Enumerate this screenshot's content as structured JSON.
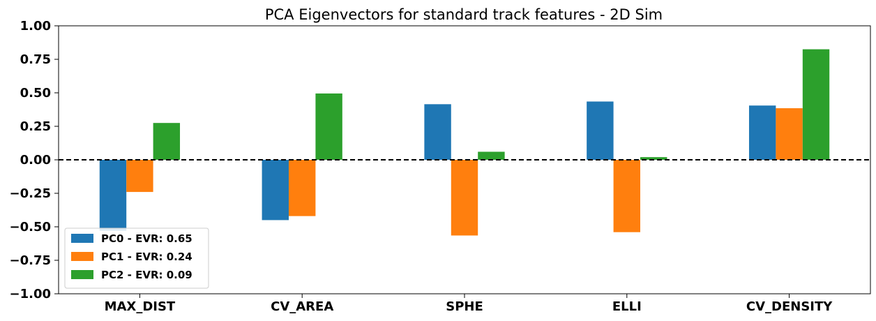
{
  "chart_data": {
    "type": "bar",
    "title": "PCA Eigenvectors for standard track features - 2D Sim",
    "xlabel": "",
    "ylabel": "",
    "categories": [
      "MAX_DIST",
      "CV_AREA",
      "SPHE",
      "ELLI",
      "CV_DENSITY"
    ],
    "ylim": [
      -1.0,
      1.0
    ],
    "yticks": [
      "1.00",
      "0.75",
      "0.50",
      "0.25",
      "0.00",
      "−0.25",
      "−0.50",
      "−0.75",
      "−1.00"
    ],
    "ytick_values": [
      1.0,
      0.75,
      0.5,
      0.25,
      0.0,
      -0.25,
      -0.5,
      -0.75,
      -1.0
    ],
    "zero_line": "dashed",
    "grid": false,
    "legend_position": "lower-left",
    "series": [
      {
        "name": "PC0 - EVR: 0.65",
        "color": "#1f77b4",
        "values": [
          -0.53,
          -0.45,
          0.415,
          0.435,
          0.405
        ]
      },
      {
        "name": "PC1 - EVR: 0.24",
        "color": "#ff7f0e",
        "values": [
          -0.24,
          -0.42,
          -0.565,
          -0.54,
          0.385
        ]
      },
      {
        "name": "PC2 - EVR: 0.09",
        "color": "#2ca02c",
        "values": [
          0.275,
          0.495,
          0.06,
          0.02,
          0.825
        ]
      }
    ]
  }
}
